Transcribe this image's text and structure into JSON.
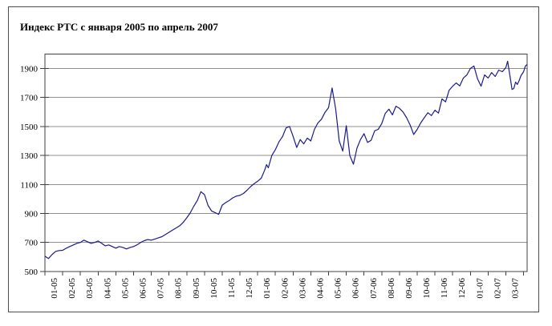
{
  "page": {
    "background": "#ffffff"
  },
  "chart_data": {
    "type": "line",
    "title": "Индекс РТС с января 2005 по апрель 2007",
    "xlabel": "",
    "ylabel": "",
    "legend": "none",
    "grid": "horizontal",
    "ylim": [
      500,
      2000
    ],
    "y_major_unit": 200,
    "y_tick_labels": [
      "1900",
      "1700",
      "1500",
      "1300",
      "1100",
      "900",
      "700",
      "500"
    ],
    "x_tick_labels": [
      "01-05",
      "02-05",
      "03-05",
      "04-05",
      "05-05",
      "06-05",
      "07-05",
      "08-05",
      "09-05",
      "10-05",
      "11-05",
      "12-05",
      "01-06",
      "02-06",
      "03-06",
      "04-06",
      "05-06",
      "06-06",
      "07-06",
      "08-06",
      "09-06",
      "10-06",
      "11-06",
      "12-06",
      "01-07",
      "02-07",
      "03-07"
    ],
    "x_months_span": 27.2,
    "line_color": "#1a1a8f",
    "grid_color": "#909090",
    "axis_color": "#404040",
    "series": [
      {
        "name": "Индекс РТС",
        "points": [
          [
            0.0,
            605
          ],
          [
            0.2,
            589
          ],
          [
            0.4,
            616
          ],
          [
            0.6,
            638
          ],
          [
            0.8,
            644
          ],
          [
            1.0,
            646
          ],
          [
            1.2,
            660
          ],
          [
            1.4,
            672
          ],
          [
            1.6,
            683
          ],
          [
            1.8,
            694
          ],
          [
            2.0,
            700
          ],
          [
            2.2,
            716
          ],
          [
            2.4,
            705
          ],
          [
            2.6,
            694
          ],
          [
            2.8,
            700
          ],
          [
            3.0,
            710
          ],
          [
            3.2,
            694
          ],
          [
            3.4,
            677
          ],
          [
            3.6,
            683
          ],
          [
            3.8,
            672
          ],
          [
            4.0,
            661
          ],
          [
            4.2,
            672
          ],
          [
            4.4,
            666
          ],
          [
            4.6,
            655
          ],
          [
            4.8,
            666
          ],
          [
            5.0,
            672
          ],
          [
            5.2,
            684
          ],
          [
            5.4,
            700
          ],
          [
            5.6,
            712
          ],
          [
            5.8,
            720
          ],
          [
            6.0,
            716
          ],
          [
            6.2,
            724
          ],
          [
            6.4,
            732
          ],
          [
            6.6,
            740
          ],
          [
            6.8,
            755
          ],
          [
            7.0,
            770
          ],
          [
            7.2,
            785
          ],
          [
            7.4,
            800
          ],
          [
            7.6,
            815
          ],
          [
            7.8,
            838
          ],
          [
            8.0,
            870
          ],
          [
            8.2,
            905
          ],
          [
            8.4,
            950
          ],
          [
            8.6,
            990
          ],
          [
            8.8,
            1050
          ],
          [
            9.0,
            1030
          ],
          [
            9.2,
            955
          ],
          [
            9.4,
            917
          ],
          [
            9.6,
            906
          ],
          [
            9.8,
            894
          ],
          [
            10.0,
            958
          ],
          [
            10.2,
            975
          ],
          [
            10.4,
            990
          ],
          [
            10.6,
            1008
          ],
          [
            10.8,
            1020
          ],
          [
            11.0,
            1025
          ],
          [
            11.2,
            1038
          ],
          [
            11.4,
            1060
          ],
          [
            11.6,
            1085
          ],
          [
            11.8,
            1105
          ],
          [
            12.0,
            1122
          ],
          [
            12.2,
            1143
          ],
          [
            12.4,
            1200
          ],
          [
            12.5,
            1237
          ],
          [
            12.6,
            1215
          ],
          [
            12.8,
            1300
          ],
          [
            13.0,
            1340
          ],
          [
            13.2,
            1394
          ],
          [
            13.4,
            1430
          ],
          [
            13.6,
            1490
          ],
          [
            13.8,
            1500
          ],
          [
            14.0,
            1432
          ],
          [
            14.2,
            1355
          ],
          [
            14.4,
            1410
          ],
          [
            14.6,
            1380
          ],
          [
            14.8,
            1420
          ],
          [
            15.0,
            1400
          ],
          [
            15.2,
            1480
          ],
          [
            15.4,
            1525
          ],
          [
            15.6,
            1550
          ],
          [
            15.8,
            1598
          ],
          [
            16.0,
            1630
          ],
          [
            16.2,
            1765
          ],
          [
            16.4,
            1620
          ],
          [
            16.6,
            1400
          ],
          [
            16.8,
            1330
          ],
          [
            17.0,
            1505
          ],
          [
            17.2,
            1300
          ],
          [
            17.4,
            1240
          ],
          [
            17.6,
            1350
          ],
          [
            17.8,
            1410
          ],
          [
            18.0,
            1450
          ],
          [
            18.2,
            1390
          ],
          [
            18.4,
            1405
          ],
          [
            18.6,
            1470
          ],
          [
            18.8,
            1480
          ],
          [
            19.0,
            1520
          ],
          [
            19.2,
            1590
          ],
          [
            19.4,
            1620
          ],
          [
            19.6,
            1580
          ],
          [
            19.8,
            1640
          ],
          [
            20.0,
            1625
          ],
          [
            20.2,
            1600
          ],
          [
            20.4,
            1560
          ],
          [
            20.6,
            1510
          ],
          [
            20.8,
            1445
          ],
          [
            21.0,
            1480
          ],
          [
            21.2,
            1525
          ],
          [
            21.4,
            1560
          ],
          [
            21.6,
            1595
          ],
          [
            21.8,
            1575
          ],
          [
            22.0,
            1612
          ],
          [
            22.2,
            1592
          ],
          [
            22.4,
            1690
          ],
          [
            22.6,
            1670
          ],
          [
            22.8,
            1750
          ],
          [
            23.0,
            1778
          ],
          [
            23.2,
            1800
          ],
          [
            23.4,
            1780
          ],
          [
            23.6,
            1834
          ],
          [
            23.8,
            1856
          ],
          [
            24.0,
            1900
          ],
          [
            24.2,
            1917
          ],
          [
            24.4,
            1830
          ],
          [
            24.6,
            1778
          ],
          [
            24.8,
            1856
          ],
          [
            25.0,
            1834
          ],
          [
            25.2,
            1872
          ],
          [
            25.4,
            1845
          ],
          [
            25.6,
            1889
          ],
          [
            25.8,
            1878
          ],
          [
            26.0,
            1906
          ],
          [
            26.1,
            1950
          ],
          [
            26.25,
            1834
          ],
          [
            26.35,
            1755
          ],
          [
            26.45,
            1762
          ],
          [
            26.55,
            1806
          ],
          [
            26.65,
            1790
          ],
          [
            26.75,
            1817
          ],
          [
            26.85,
            1850
          ],
          [
            27.0,
            1878
          ],
          [
            27.1,
            1917
          ],
          [
            27.2,
            1928
          ]
        ]
      }
    ]
  }
}
